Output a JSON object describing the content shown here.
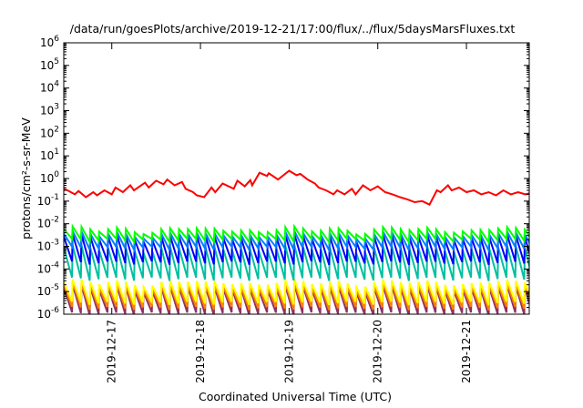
{
  "chart_data": {
    "type": "line",
    "title": "/data/run/goesPlots/archive/2019-12-21/17:00/flux/../flux/5daysMarsFluxes.txt",
    "xlabel": "Coordinated Universal Time (UTC)",
    "ylabel": "protons/cm²-s-sr-MeV",
    "y_scale": "log",
    "ylim": [
      1e-06,
      1000000.0
    ],
    "y_ticks": [
      {
        "value": 1e-06,
        "mantissa": "10",
        "exp": "-6"
      },
      {
        "value": 1e-05,
        "mantissa": "10",
        "exp": "-5"
      },
      {
        "value": 0.0001,
        "mantissa": "10",
        "exp": "-4"
      },
      {
        "value": 0.001,
        "mantissa": "10",
        "exp": "-3"
      },
      {
        "value": 0.01,
        "mantissa": "10",
        "exp": "-2"
      },
      {
        "value": 0.1,
        "mantissa": "10",
        "exp": "-1"
      },
      {
        "value": 1,
        "mantissa": "10",
        "exp": "0"
      },
      {
        "value": 10,
        "mantissa": "10",
        "exp": "1"
      },
      {
        "value": 100,
        "mantissa": "10",
        "exp": "2"
      },
      {
        "value": 1000,
        "mantissa": "10",
        "exp": "3"
      },
      {
        "value": 10000,
        "mantissa": "10",
        "exp": "4"
      },
      {
        "value": 100000,
        "mantissa": "10",
        "exp": "5"
      },
      {
        "value": 1000000,
        "mantissa": "10",
        "exp": "6"
      }
    ],
    "xlim": [
      "2019-12-16T11:00",
      "2019-12-21T17:00"
    ],
    "x_ticks": [
      "2019-12-17",
      "2019-12-18",
      "2019-12-19",
      "2019-12-20",
      "2019-12-21"
    ],
    "grid": false,
    "legend": "none",
    "series": [
      {
        "color": "#ff0000",
        "x": [
          "2019-12-16T11:00",
          "2019-12-16T12:00",
          "2019-12-16T14:00",
          "2019-12-16T15:00",
          "2019-12-16T17:00",
          "2019-12-16T19:00",
          "2019-12-16T20:00",
          "2019-12-16T22:00",
          "2019-12-17T00:00",
          "2019-12-17T01:00",
          "2019-12-17T03:00",
          "2019-12-17T05:00",
          "2019-12-17T06:00",
          "2019-12-17T09:00",
          "2019-12-17T10:00",
          "2019-12-17T12:00",
          "2019-12-17T14:00",
          "2019-12-17T15:00",
          "2019-12-17T17:00",
          "2019-12-17T19:00",
          "2019-12-17T20:00",
          "2019-12-17T22:00",
          "2019-12-17T23:00",
          "2019-12-18T01:00",
          "2019-12-18T03:00",
          "2019-12-18T04:00",
          "2019-12-18T06:00",
          "2019-12-18T09:00",
          "2019-12-18T10:00",
          "2019-12-18T12:00",
          "2019-12-18T13:30",
          "2019-12-18T14:00",
          "2019-12-18T16:00",
          "2019-12-18T18:00",
          "2019-12-18T18:30",
          "2019-12-18T21:00",
          "2019-12-19T00:00",
          "2019-12-19T02:00",
          "2019-12-19T03:00",
          "2019-12-19T05:00",
          "2019-12-19T07:00",
          "2019-12-19T08:00",
          "2019-12-19T10:00",
          "2019-12-19T12:00",
          "2019-12-19T13:00",
          "2019-12-19T15:00",
          "2019-12-19T17:00",
          "2019-12-19T18:00",
          "2019-12-19T20:00",
          "2019-12-19T22:00",
          "2019-12-20T00:00",
          "2019-12-20T02:00",
          "2019-12-20T04:00",
          "2019-12-20T06:00",
          "2019-12-20T08:00",
          "2019-12-20T10:00",
          "2019-12-20T12:00",
          "2019-12-20T14:00",
          "2019-12-20T16:00",
          "2019-12-20T17:00",
          "2019-12-20T19:00",
          "2019-12-20T20:00",
          "2019-12-20T22:00",
          "2019-12-21T00:00",
          "2019-12-21T02:00",
          "2019-12-21T04:00",
          "2019-12-21T06:00",
          "2019-12-21T08:00",
          "2019-12-21T10:00",
          "2019-12-21T12:00",
          "2019-12-21T14:00",
          "2019-12-21T16:00",
          "2019-12-21T17:00"
        ],
        "values": [
          0.35,
          0.3,
          0.2,
          0.28,
          0.15,
          0.25,
          0.18,
          0.3,
          0.2,
          0.4,
          0.25,
          0.5,
          0.3,
          0.65,
          0.4,
          0.8,
          0.55,
          0.9,
          0.5,
          0.7,
          0.35,
          0.25,
          0.18,
          0.15,
          0.4,
          0.25,
          0.6,
          0.35,
          0.8,
          0.45,
          0.85,
          0.5,
          1.8,
          1.3,
          1.7,
          0.9,
          2.2,
          1.4,
          1.6,
          0.9,
          0.6,
          0.4,
          0.3,
          0.2,
          0.3,
          0.2,
          0.35,
          0.2,
          0.5,
          0.3,
          0.45,
          0.25,
          0.2,
          0.15,
          0.12,
          0.09,
          0.1,
          0.07,
          0.3,
          0.25,
          0.5,
          0.3,
          0.4,
          0.25,
          0.3,
          0.2,
          0.25,
          0.18,
          0.3,
          0.2,
          0.25,
          0.2,
          0.22
        ]
      },
      {
        "color": "#00ff00",
        "base": 0.0018,
        "peak": 0.006,
        "period_hours": 2.4
      },
      {
        "color": "#0080ff",
        "base": 0.0008,
        "peak": 0.0038,
        "period_hours": 2.4
      },
      {
        "color": "#0000ff",
        "base": 0.00018,
        "peak": 0.0028,
        "period_hours": 2.4
      },
      {
        "color": "#00c0a0",
        "base": 3.5e-05,
        "peak": 0.0009,
        "period_hours": 2.4
      },
      {
        "color": "#ffff00",
        "base": 3e-06,
        "peak": 2.8e-05,
        "period_hours": 2.4
      },
      {
        "color": "#ff8000",
        "base": 1.8e-06,
        "peak": 2e-05,
        "period_hours": 2.4
      },
      {
        "color": "#903060",
        "base": 1e-06,
        "peak": 1.6e-05,
        "period_hours": 2.4
      }
    ]
  }
}
